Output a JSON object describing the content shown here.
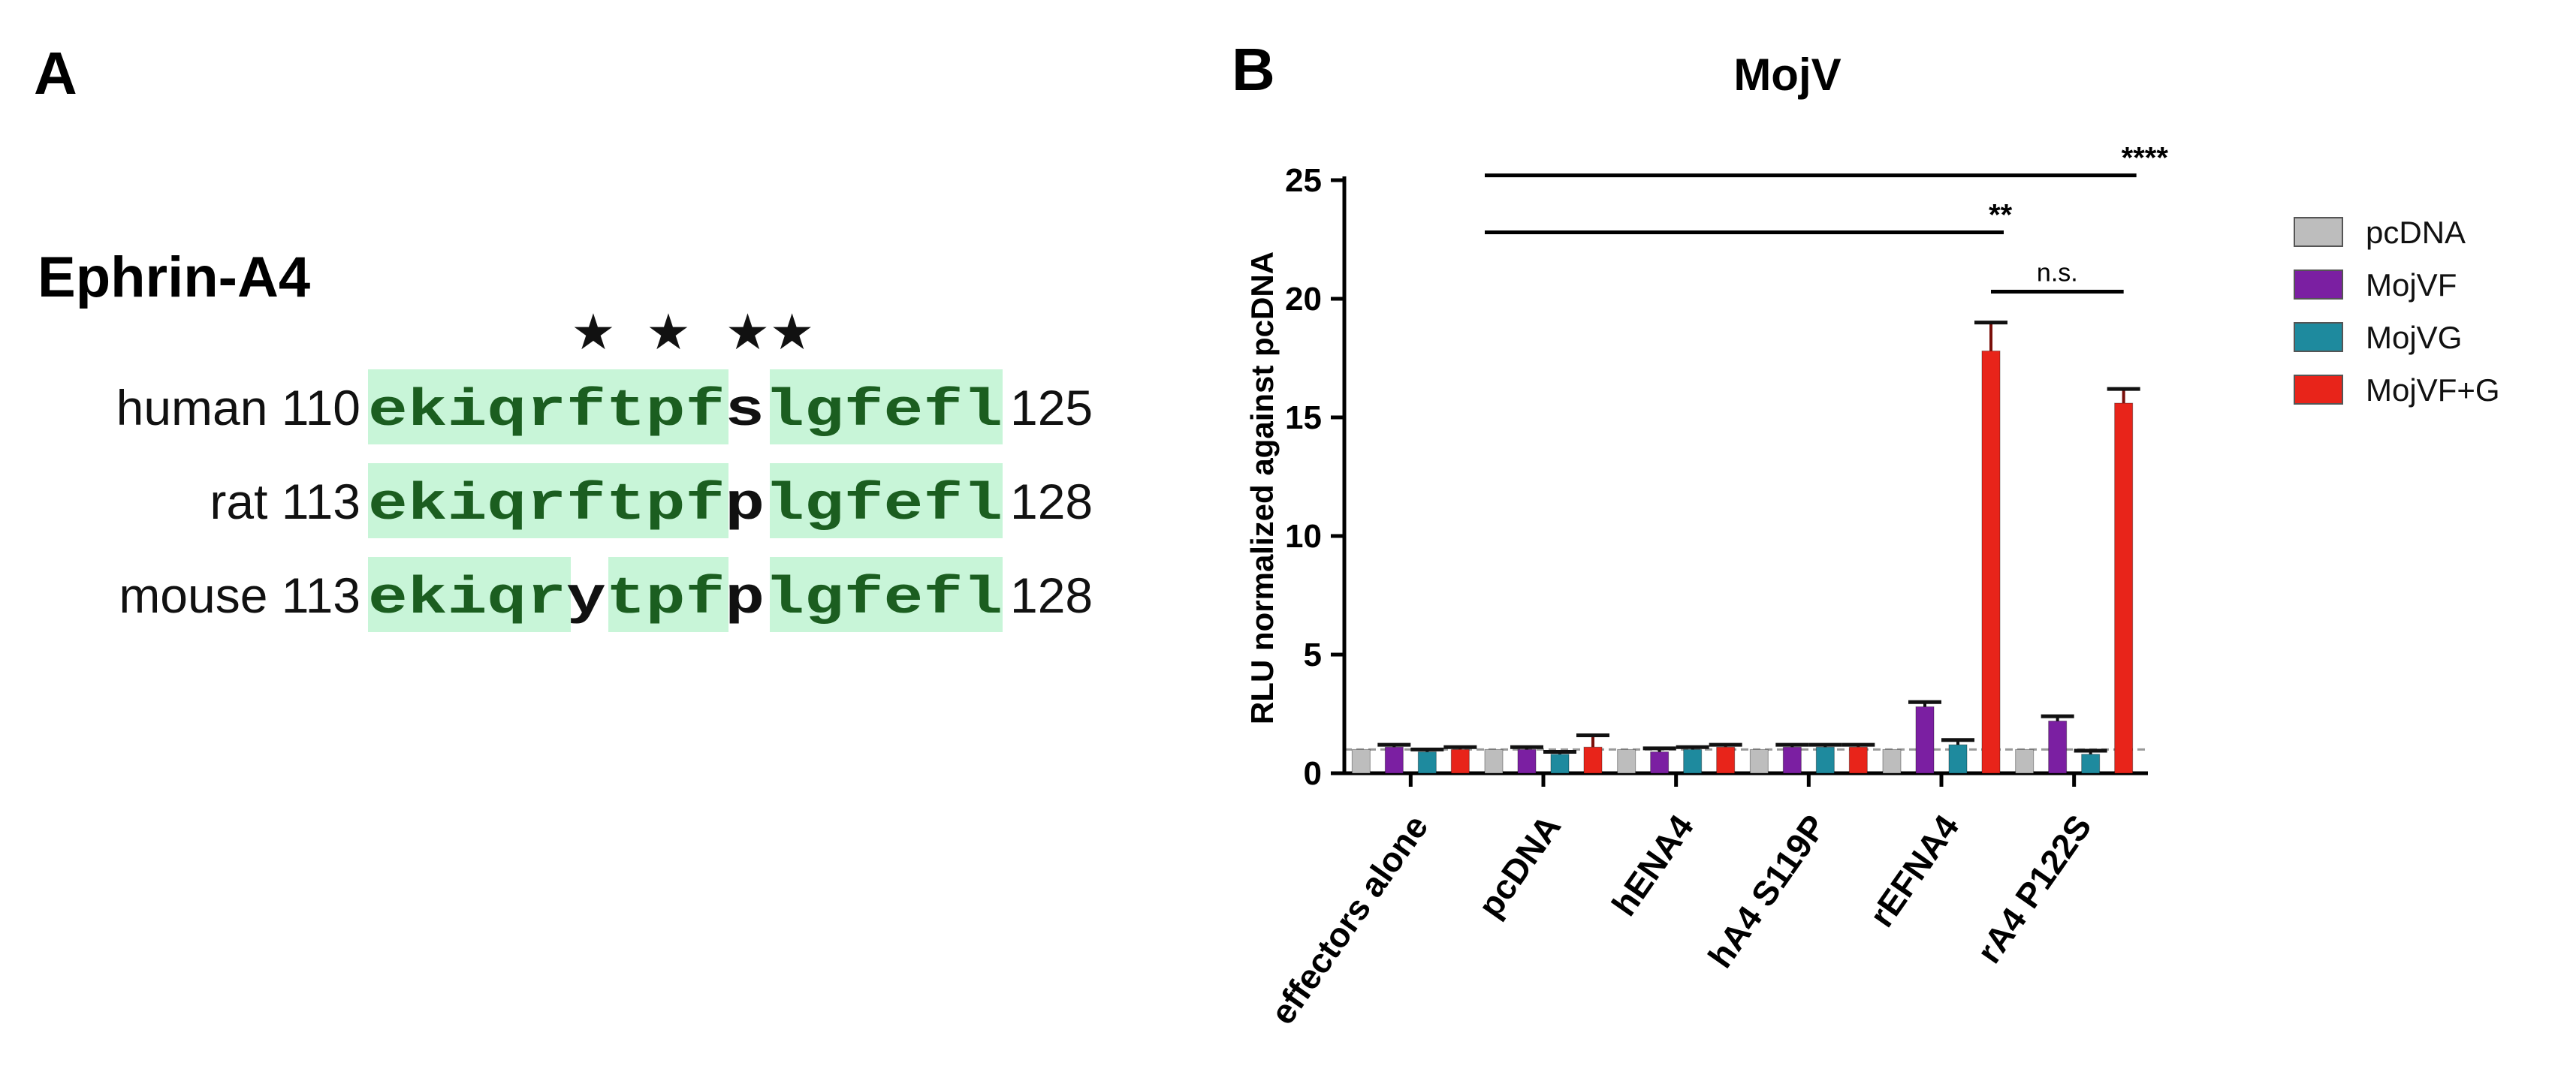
{
  "panel_a": {
    "letter": "A",
    "title": "Ephrin-A4",
    "stars": [
      "★",
      "★",
      "★★"
    ],
    "rows": [
      {
        "species": "human",
        "start": "110",
        "end": "125",
        "segments": [
          {
            "text": "ekiqrftpf",
            "hl": true
          },
          {
            "text": "s",
            "hl": false
          },
          {
            "text": "lgfefl",
            "hl": true
          }
        ]
      },
      {
        "species": "rat",
        "start": "113",
        "end": "128",
        "segments": [
          {
            "text": "ekiqrftpf",
            "hl": true
          },
          {
            "text": "p",
            "hl": false
          },
          {
            "text": "lgfefl",
            "hl": true
          }
        ]
      },
      {
        "species": "mouse",
        "start": "113",
        "end": "128",
        "segments": [
          {
            "text": "ekiqr",
            "hl": true
          },
          {
            "text": "y",
            "hl": false
          },
          {
            "text": "tpf",
            "hl": true
          },
          {
            "text": "p",
            "hl": false
          },
          {
            "text": "lgfefl",
            "hl": true
          }
        ]
      }
    ],
    "colors": {
      "highlight": "#c8f5d8"
    }
  },
  "panel_b": {
    "letter": "B",
    "chart_data": {
      "type": "bar",
      "title": "MojV",
      "xlabel": "",
      "ylabel": "RLU normalized against pcDNA",
      "ylim": [
        0,
        25
      ],
      "yticks": [
        "0",
        "5",
        "10",
        "15",
        "20",
        "25"
      ],
      "baseline": 1,
      "categories": [
        "effectors alone",
        "pcDNA",
        "hENA4",
        "hA4 S119P",
        "rEFNA4",
        "rA4 P122S"
      ],
      "series": [
        {
          "name": "pcDNA",
          "color": "#bdbdbd",
          "values": [
            1.0,
            1.0,
            1.0,
            1.0,
            1.0,
            1.0
          ],
          "errors": [
            0.05,
            0.05,
            0.05,
            0.05,
            0.05,
            0.05
          ]
        },
        {
          "name": "MojVF",
          "color": "#7b1fa2",
          "values": [
            1.1,
            1.0,
            0.9,
            1.1,
            2.8,
            2.2
          ],
          "errors": [
            0.1,
            0.1,
            0.15,
            0.1,
            0.2,
            0.2
          ]
        },
        {
          "name": "MojVG",
          "color": "#1e8a9e",
          "values": [
            0.9,
            0.8,
            1.0,
            1.1,
            1.2,
            0.8
          ],
          "errors": [
            0.1,
            0.1,
            0.1,
            0.1,
            0.2,
            0.15
          ]
        },
        {
          "name": "MojVF+G",
          "color": "#e8241a",
          "values": [
            1.0,
            1.1,
            1.1,
            1.1,
            17.8,
            15.6
          ],
          "errors": [
            0.1,
            0.5,
            0.1,
            0.1,
            1.2,
            0.6
          ]
        }
      ],
      "annotations": [
        {
          "label": "****",
          "from": 1,
          "to": 5,
          "y": 25.2,
          "style": "stars"
        },
        {
          "label": "**",
          "from": 1,
          "to": 4,
          "y": 22.8,
          "style": "stars"
        },
        {
          "label": "n.s.",
          "from": 4,
          "to": 5,
          "y": 20.3,
          "style": "ns"
        }
      ]
    }
  }
}
